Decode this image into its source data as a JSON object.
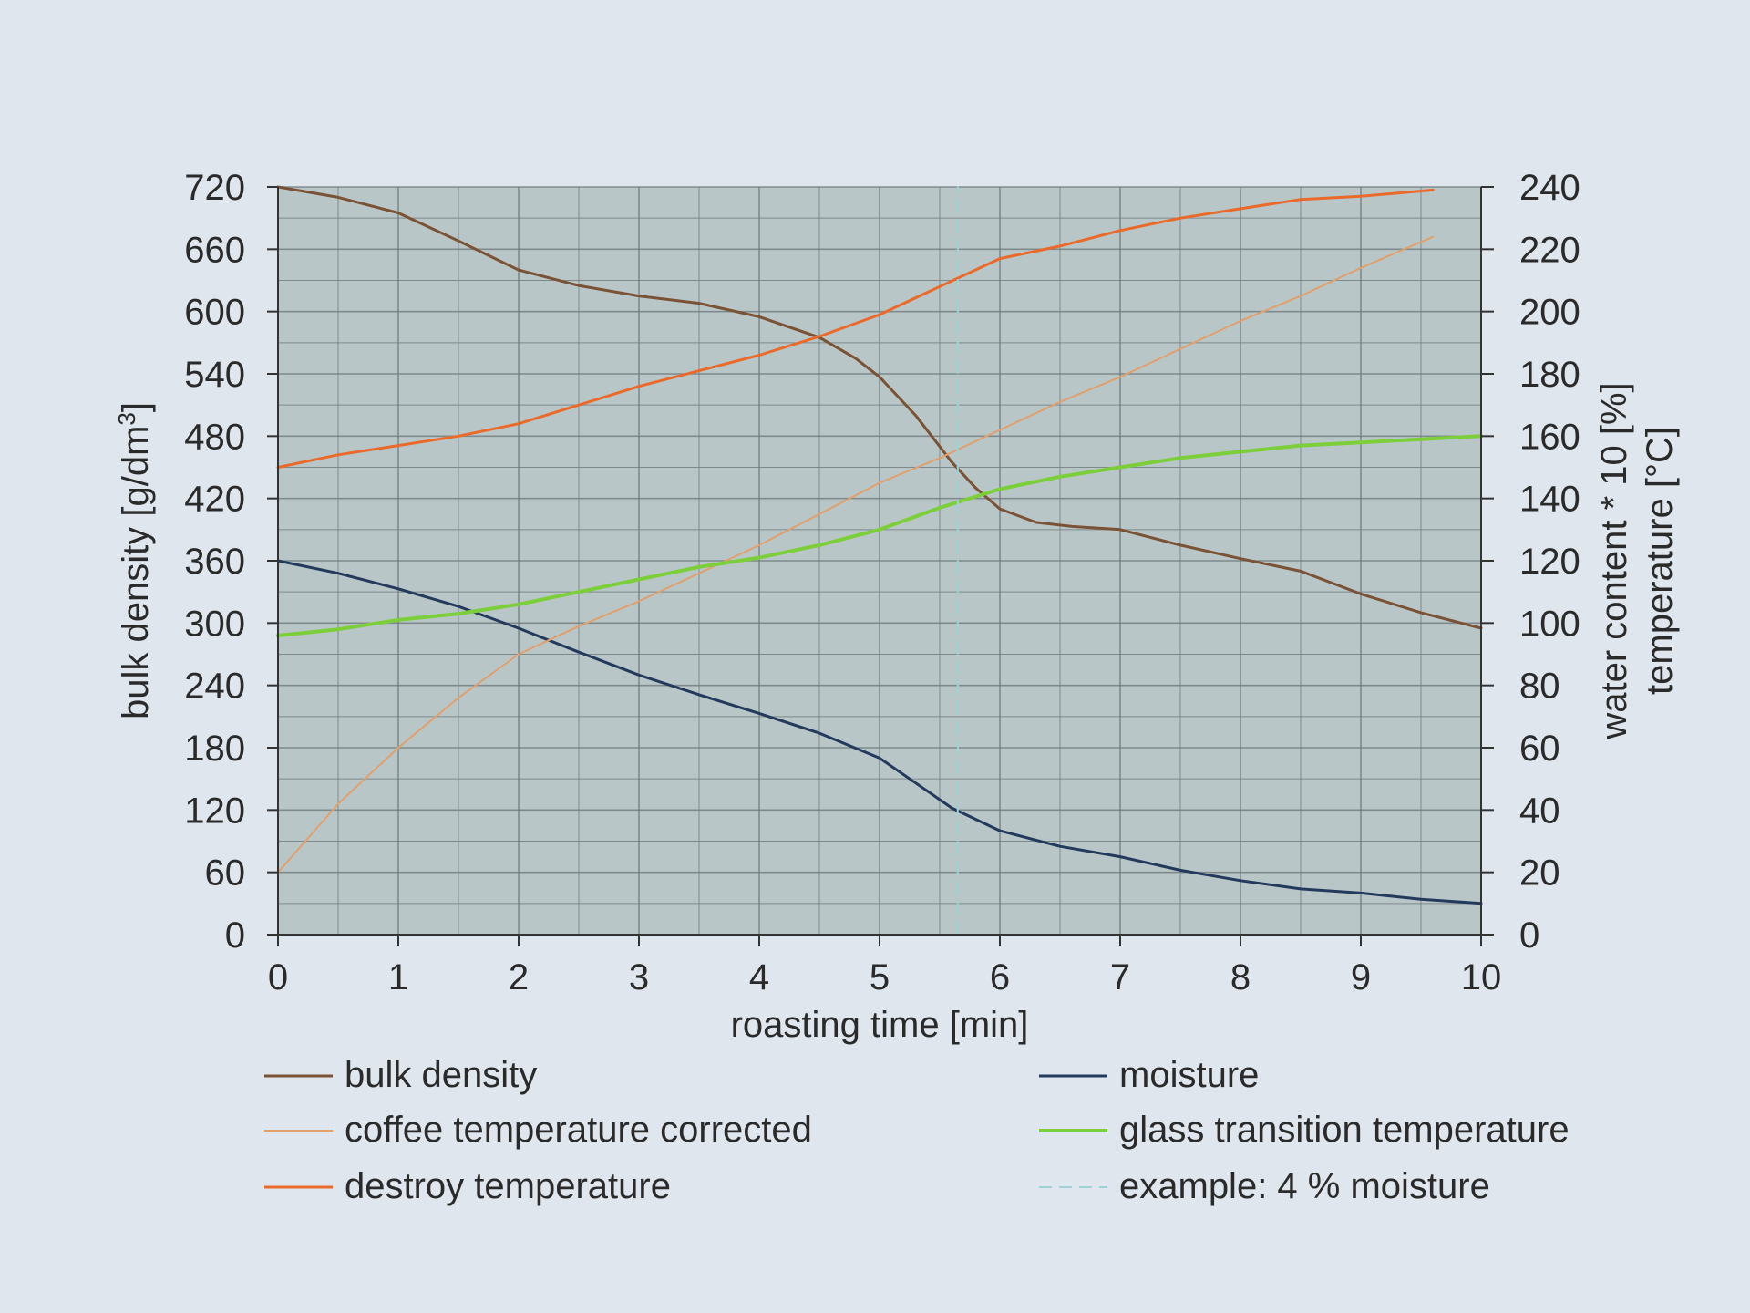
{
  "chart_data": {
    "type": "line",
    "xlabel": "roasting time [min]",
    "ylabel_left": "bulk density [g/dm³]",
    "ylabel_left_parts": [
      "bulk density [g/dm",
      "3",
      "]"
    ],
    "ylabel_right_1": "water content * 10 [%]",
    "ylabel_right_2": "temperature [°C]",
    "x_ticks": [
      "0",
      "1",
      "2",
      "3",
      "4",
      "5",
      "6",
      "7",
      "8",
      "9",
      "10"
    ],
    "y_left_ticks": [
      "0",
      "60",
      "120",
      "180",
      "240",
      "300",
      "360",
      "420",
      "480",
      "540",
      "600",
      "660",
      "720"
    ],
    "y_right_ticks": [
      "0",
      "20",
      "40",
      "60",
      "80",
      "100",
      "120",
      "140",
      "160",
      "180",
      "200",
      "220",
      "240"
    ],
    "xlim": [
      0,
      10
    ],
    "ylim_left": [
      0,
      720
    ],
    "ylim_right": [
      0,
      240
    ],
    "grid": true,
    "legend_position": "bottom",
    "series": [
      {
        "name": "bulk density",
        "axis": "left",
        "color": "#7a5236",
        "width": 3,
        "points": [
          [
            0,
            720
          ],
          [
            0.5,
            710
          ],
          [
            1,
            695
          ],
          [
            1.5,
            668
          ],
          [
            2,
            640
          ],
          [
            2.5,
            625
          ],
          [
            3,
            615
          ],
          [
            3.5,
            608
          ],
          [
            4,
            595
          ],
          [
            4.5,
            575
          ],
          [
            4.8,
            555
          ],
          [
            5,
            537
          ],
          [
            5.3,
            500
          ],
          [
            5.6,
            455
          ],
          [
            5.8,
            430
          ],
          [
            6,
            410
          ],
          [
            6.3,
            397
          ],
          [
            6.6,
            393
          ],
          [
            7,
            390
          ],
          [
            7.5,
            375
          ],
          [
            8,
            362
          ],
          [
            8.5,
            350
          ],
          [
            9,
            328
          ],
          [
            9.5,
            310
          ],
          [
            10,
            295
          ]
        ]
      },
      {
        "name": "moisture",
        "axis": "left",
        "color": "#243a5c",
        "width": 3,
        "points": [
          [
            0,
            360
          ],
          [
            0.5,
            348
          ],
          [
            1,
            333
          ],
          [
            1.5,
            316
          ],
          [
            2,
            295
          ],
          [
            2.5,
            272
          ],
          [
            3,
            250
          ],
          [
            3.5,
            231
          ],
          [
            4,
            213
          ],
          [
            4.5,
            194
          ],
          [
            5,
            170
          ],
          [
            5.3,
            146
          ],
          [
            5.6,
            122
          ],
          [
            6,
            100
          ],
          [
            6.5,
            85
          ],
          [
            7,
            75
          ],
          [
            7.5,
            62
          ],
          [
            8,
            52
          ],
          [
            8.5,
            44
          ],
          [
            9,
            40
          ],
          [
            9.5,
            34
          ],
          [
            10,
            30
          ]
        ]
      },
      {
        "name": "coffee temperature corrected",
        "axis": "right",
        "color": "#e0a06e",
        "width": 2,
        "points": [
          [
            0,
            20
          ],
          [
            0.5,
            42
          ],
          [
            1,
            60
          ],
          [
            1.5,
            76
          ],
          [
            2,
            90
          ],
          [
            2.5,
            99
          ],
          [
            3,
            107
          ],
          [
            3.5,
            116
          ],
          [
            4,
            125
          ],
          [
            4.5,
            135
          ],
          [
            5,
            145
          ],
          [
            5.5,
            153
          ],
          [
            6,
            162
          ],
          [
            6.5,
            171
          ],
          [
            7,
            179
          ],
          [
            7.5,
            188
          ],
          [
            8,
            197
          ],
          [
            8.5,
            205
          ],
          [
            9,
            214
          ],
          [
            9.6,
            224
          ]
        ]
      },
      {
        "name": "destroy temperature",
        "axis": "right",
        "color": "#ea6a2c",
        "width": 3,
        "points": [
          [
            0,
            150
          ],
          [
            0.5,
            154
          ],
          [
            1,
            157
          ],
          [
            1.5,
            160
          ],
          [
            2,
            164
          ],
          [
            2.5,
            170
          ],
          [
            3,
            176
          ],
          [
            3.5,
            181
          ],
          [
            4,
            186
          ],
          [
            4.5,
            192
          ],
          [
            5,
            199
          ],
          [
            5.5,
            208
          ],
          [
            6,
            217
          ],
          [
            6.5,
            221
          ],
          [
            7,
            226
          ],
          [
            7.5,
            230
          ],
          [
            8,
            233
          ],
          [
            8.5,
            236
          ],
          [
            9,
            237
          ],
          [
            9.6,
            239
          ]
        ]
      },
      {
        "name": "glass transition temperature",
        "axis": "right",
        "color": "#7ccf3a",
        "width": 4,
        "points": [
          [
            0,
            96
          ],
          [
            0.5,
            98
          ],
          [
            1,
            101
          ],
          [
            1.5,
            103
          ],
          [
            2,
            106
          ],
          [
            2.5,
            110
          ],
          [
            3,
            114
          ],
          [
            3.5,
            118
          ],
          [
            4,
            121
          ],
          [
            4.5,
            125
          ],
          [
            5,
            130
          ],
          [
            5.5,
            137
          ],
          [
            6,
            143
          ],
          [
            6.5,
            147
          ],
          [
            7,
            150
          ],
          [
            7.5,
            153
          ],
          [
            8,
            155
          ],
          [
            8.5,
            157
          ],
          [
            9,
            158
          ],
          [
            10,
            160
          ]
        ]
      },
      {
        "name": "example: 4 % moisture",
        "axis": "left",
        "color": "#9fd2d6",
        "width": 2,
        "dashed": true,
        "points": [
          [
            5.65,
            0
          ],
          [
            5.65,
            720
          ]
        ]
      }
    ],
    "legend": [
      {
        "label": "bulk density",
        "color": "#7a5236",
        "width": 3,
        "dashed": false
      },
      {
        "label": "moisture",
        "color": "#243a5c",
        "width": 3,
        "dashed": false
      },
      {
        "label": "coffee temperature corrected",
        "color": "#e0a06e",
        "width": 2,
        "dashed": false
      },
      {
        "label": "glass transition temperature",
        "color": "#7ccf3a",
        "width": 4,
        "dashed": false
      },
      {
        "label": "destroy temperature",
        "color": "#ea6a2c",
        "width": 3,
        "dashed": false
      },
      {
        "label": "example: 4 % moisture",
        "color": "#9fd2d6",
        "width": 2,
        "dashed": true
      }
    ],
    "colors": {
      "plot_background": "#b9c6c8",
      "grid": "#6f7a7c",
      "axis": "#333333",
      "page": "#dfe6ee"
    }
  }
}
